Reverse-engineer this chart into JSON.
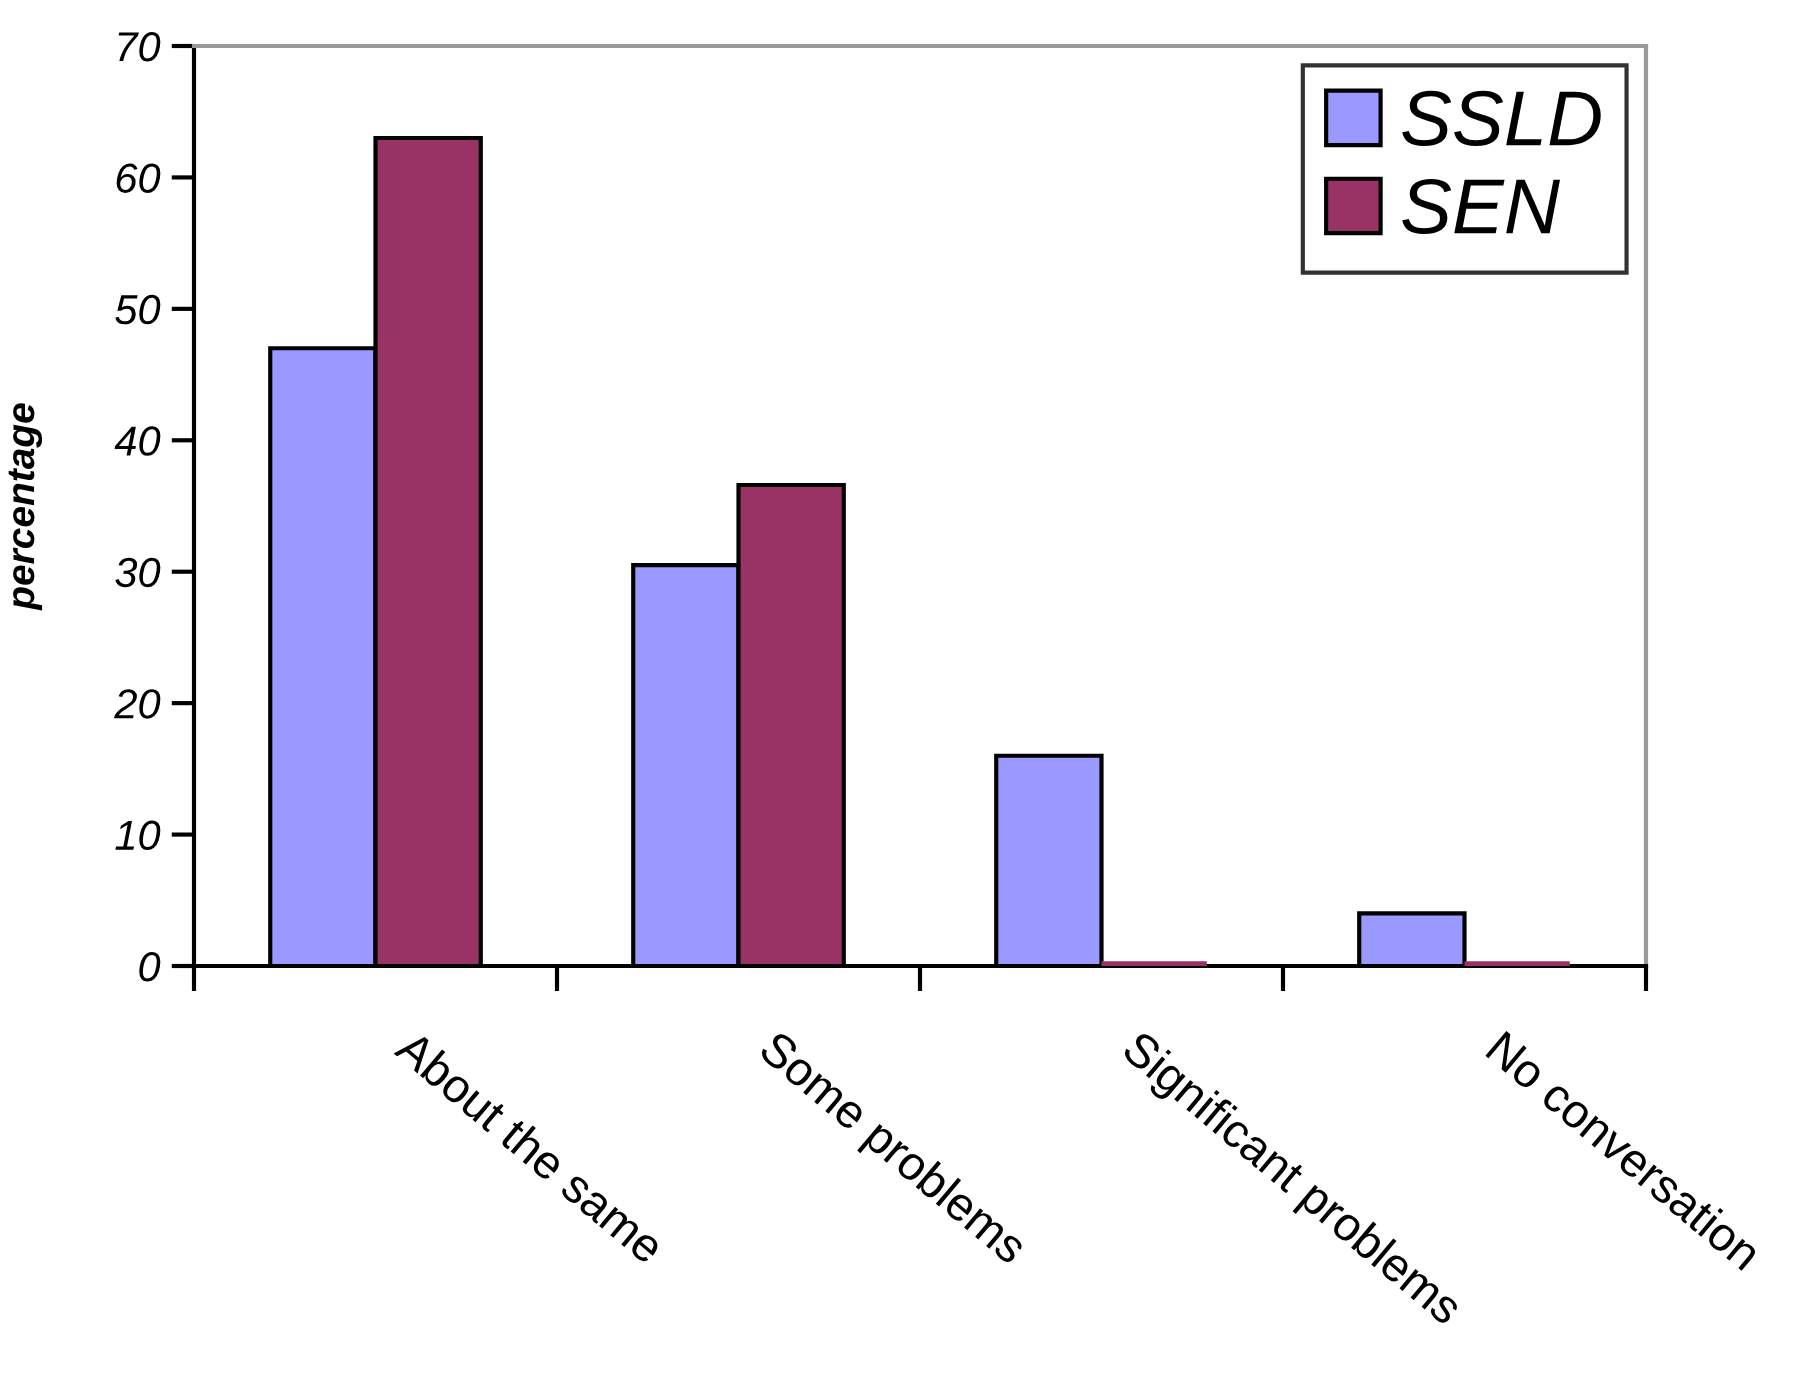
{
  "chart_data": {
    "type": "bar",
    "ylabel": "percentage",
    "categories": [
      "About the same",
      "Some problems",
      "Significant problems",
      "No conversation"
    ],
    "series": [
      {
        "name": "SSLD",
        "color": "#9999ff",
        "values": [
          47,
          30.5,
          16,
          4
        ]
      },
      {
        "name": "SEN",
        "color": "#993366",
        "values": [
          63,
          36.6,
          0,
          0
        ]
      }
    ],
    "ylim": [
      0,
      70
    ],
    "yticks": [
      0,
      10,
      20,
      30,
      40,
      50,
      60,
      70
    ],
    "grid": false,
    "legend": "top right"
  }
}
